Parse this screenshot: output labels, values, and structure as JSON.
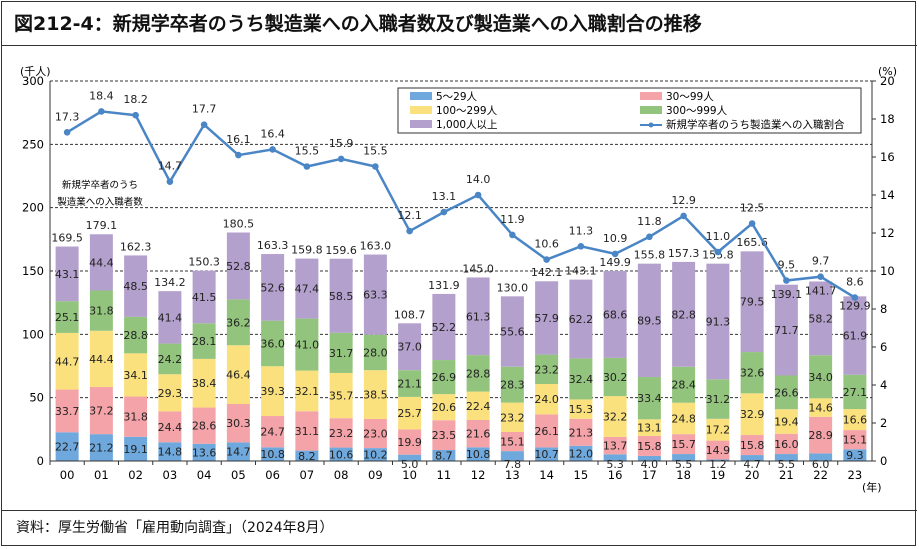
{
  "title": "図212-4：新規学卒者のうち製造業への入職者数及び製造業への入職割合の推移",
  "source": "資料：厚生労働省「雇用動向調査」（2024年8月）",
  "chart_data": {
    "type": "bar",
    "stacked": true,
    "categories": [
      "00",
      "01",
      "02",
      "03",
      "04",
      "05",
      "06",
      "07",
      "08",
      "09",
      "10",
      "11",
      "12",
      "13",
      "14",
      "15",
      "16",
      "17",
      "18",
      "19",
      "20",
      "21",
      "22",
      "23"
    ],
    "xlabel": "(年)",
    "ylabel_left": "(千人)",
    "ylabel_right": "(%)",
    "ylim_left": [
      0,
      300
    ],
    "yticks_left": [
      0,
      50,
      100,
      150,
      200,
      250,
      300
    ],
    "ylim_right": [
      0,
      20
    ],
    "yticks_right": [
      0,
      2,
      4,
      6,
      8,
      10,
      12,
      14,
      16,
      18,
      20
    ],
    "grid": "horizontal dashed",
    "legend_position": "top-right",
    "annotation": [
      "新規学卒者のうち",
      "製造業への入職者数"
    ],
    "series": [
      {
        "name": "5～29人",
        "color": "#6fa8dc",
        "values": [
          22.7,
          21.2,
          19.1,
          14.8,
          13.6,
          14.7,
          10.8,
          8.2,
          10.6,
          10.2,
          5.0,
          8.7,
          10.8,
          7.8,
          10.7,
          12.0,
          5.3,
          4.0,
          5.5,
          1.2,
          4.7,
          5.5,
          6.0,
          9.3
        ]
      },
      {
        "name": "30～99人",
        "color": "#f4a3a8",
        "values": [
          33.7,
          37.2,
          31.8,
          24.4,
          28.6,
          30.3,
          24.7,
          31.1,
          23.2,
          23.0,
          19.9,
          23.5,
          21.6,
          15.1,
          26.1,
          21.3,
          13.7,
          15.8,
          15.7,
          14.9,
          15.8,
          16.0,
          28.9,
          15.1
        ]
      },
      {
        "name": "100～299人",
        "color": "#fae17e",
        "values": [
          44.7,
          44.4,
          34.1,
          29.3,
          38.4,
          46.4,
          39.3,
          32.1,
          35.7,
          38.5,
          25.7,
          20.6,
          22.4,
          23.2,
          24.0,
          15.3,
          32.2,
          13.1,
          24.8,
          17.2,
          32.9,
          19.4,
          14.6,
          16.6
        ]
      },
      {
        "name": "300～999人",
        "color": "#93c47d",
        "values": [
          25.1,
          31.8,
          28.8,
          24.2,
          28.1,
          36.2,
          36.0,
          41.0,
          31.7,
          28.0,
          21.1,
          26.9,
          28.8,
          28.3,
          23.2,
          32.4,
          30.2,
          33.4,
          28.4,
          31.2,
          32.6,
          26.6,
          34.0,
          27.1
        ]
      },
      {
        "name": "1,000人以上",
        "color": "#b4a0cc",
        "values": [
          43.1,
          44.4,
          48.5,
          41.4,
          41.5,
          52.8,
          52.6,
          47.4,
          58.5,
          63.3,
          37.0,
          52.2,
          61.3,
          55.6,
          57.9,
          62.2,
          68.6,
          89.5,
          82.8,
          91.3,
          79.5,
          71.7,
          58.2,
          61.9
        ]
      }
    ],
    "totals": [
      169.5,
      179.1,
      162.3,
      134.2,
      150.3,
      180.5,
      163.3,
      159.8,
      159.6,
      163.0,
      108.7,
      131.9,
      145.0,
      130.0,
      142.1,
      143.1,
      149.9,
      155.8,
      157.3,
      155.8,
      165.6,
      139.1,
      141.7,
      129.9
    ],
    "line": {
      "name": "新規学卒者のうち製造業への入職割合",
      "color": "#4a86c5",
      "axis": "right",
      "values": [
        17.3,
        18.4,
        18.2,
        14.7,
        17.7,
        16.1,
        16.4,
        15.5,
        15.9,
        15.5,
        12.1,
        13.1,
        14.0,
        11.9,
        10.6,
        11.3,
        10.9,
        11.8,
        12.9,
        11.0,
        12.5,
        9.5,
        9.7,
        8.6
      ]
    }
  }
}
